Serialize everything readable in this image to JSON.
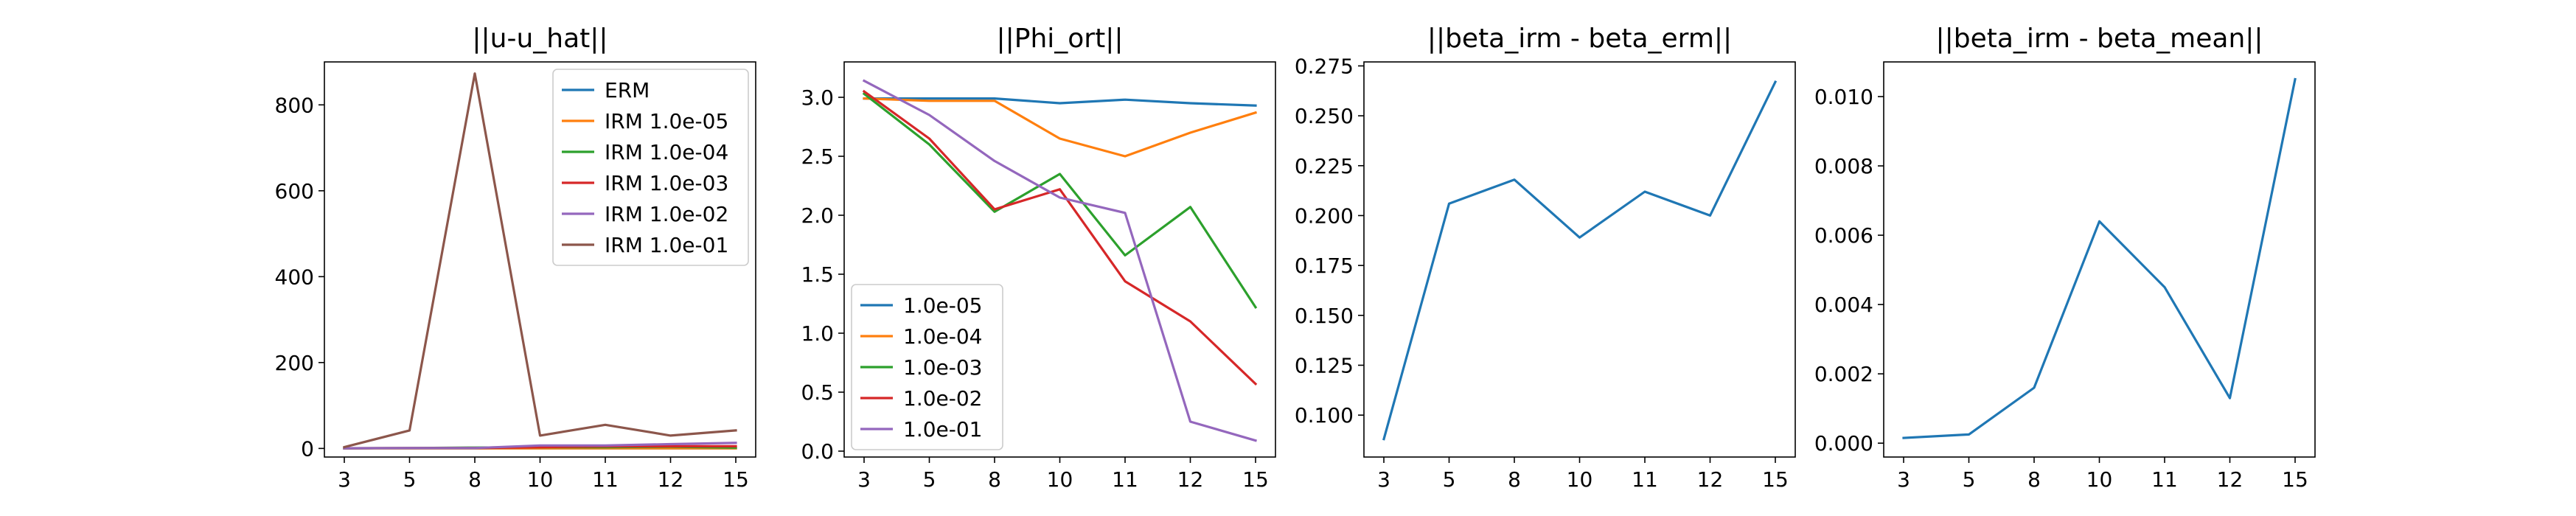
{
  "colors": [
    "#1f77b4",
    "#ff7f0e",
    "#2ca02c",
    "#d62728",
    "#9467bd",
    "#8c564b"
  ],
  "chart_data": [
    {
      "type": "line",
      "title": "||u-u_hat||",
      "xlabel": "",
      "ylabel": "",
      "categories": [
        "3",
        "5",
        "8",
        "10",
        "11",
        "12",
        "15"
      ],
      "ylim": [
        -20,
        900
      ],
      "yticks": [
        0,
        200,
        400,
        600,
        800
      ],
      "ytick_labels": [
        "0",
        "200",
        "400",
        "600",
        "800"
      ],
      "legend_position": "top-right",
      "series": [
        {
          "name": "ERM",
          "values": [
            0.5,
            0.5,
            0.5,
            0.5,
            0.5,
            0.5,
            0.5
          ]
        },
        {
          "name": "IRM 1.0e-05",
          "values": [
            0.5,
            0.5,
            0.5,
            0.5,
            0.5,
            0.5,
            0.5
          ]
        },
        {
          "name": "IRM 1.0e-04",
          "values": [
            0.5,
            1,
            2,
            3,
            3,
            4,
            2
          ]
        },
        {
          "name": "IRM 1.0e-03",
          "values": [
            0.5,
            1,
            1,
            3,
            5,
            5,
            5
          ]
        },
        {
          "name": "IRM 1.0e-02",
          "values": [
            0.5,
            1,
            1,
            7,
            7,
            10,
            13
          ]
        },
        {
          "name": "IRM 1.0e-01",
          "values": [
            3,
            42,
            873,
            30,
            55,
            30,
            42
          ]
        }
      ]
    },
    {
      "type": "line",
      "title": "||Phi_ort||",
      "xlabel": "",
      "ylabel": "",
      "categories": [
        "3",
        "5",
        "8",
        "10",
        "11",
        "12",
        "15"
      ],
      "ylim": [
        -0.05,
        3.3
      ],
      "yticks": [
        0.0,
        0.5,
        1.0,
        1.5,
        2.0,
        2.5,
        3.0
      ],
      "ytick_labels": [
        "0.0",
        "0.5",
        "1.0",
        "1.5",
        "2.0",
        "2.5",
        "3.0"
      ],
      "legend_position": "bottom-left",
      "series": [
        {
          "name": "1.0e-05",
          "values": [
            2.99,
            2.99,
            2.99,
            2.95,
            2.98,
            2.95,
            2.93
          ]
        },
        {
          "name": "1.0e-04",
          "values": [
            2.99,
            2.97,
            2.97,
            2.65,
            2.5,
            2.7,
            2.87
          ]
        },
        {
          "name": "1.0e-03",
          "values": [
            3.03,
            2.6,
            2.03,
            2.35,
            1.66,
            2.07,
            1.22
          ]
        },
        {
          "name": "1.0e-02",
          "values": [
            3.05,
            2.65,
            2.05,
            2.22,
            1.44,
            1.1,
            0.57
          ]
        },
        {
          "name": "1.0e-01",
          "values": [
            3.14,
            2.85,
            2.46,
            2.15,
            2.02,
            0.25,
            0.09
          ]
        }
      ]
    },
    {
      "type": "line",
      "title": "||beta_irm - beta_erm||",
      "xlabel": "",
      "ylabel": "",
      "categories": [
        "3",
        "5",
        "8",
        "10",
        "11",
        "12",
        "15"
      ],
      "ylim": [
        0.079,
        0.277
      ],
      "yticks": [
        0.1,
        0.125,
        0.15,
        0.175,
        0.2,
        0.225,
        0.25,
        0.275
      ],
      "ytick_labels": [
        "0.100",
        "0.125",
        "0.150",
        "0.175",
        "0.200",
        "0.225",
        "0.250",
        "0.275"
      ],
      "legend_position": "none",
      "series": [
        {
          "name": "",
          "values": [
            0.088,
            0.206,
            0.218,
            0.189,
            0.212,
            0.2,
            0.267
          ]
        }
      ]
    },
    {
      "type": "line",
      "title": "||beta_irm - beta_mean||",
      "xlabel": "",
      "ylabel": "",
      "categories": [
        "3",
        "5",
        "8",
        "10",
        "11",
        "12",
        "15"
      ],
      "ylim": [
        -0.0004,
        0.011
      ],
      "yticks": [
        0.0,
        0.002,
        0.004,
        0.006,
        0.008,
        0.01
      ],
      "ytick_labels": [
        "0.000",
        "0.002",
        "0.004",
        "0.006",
        "0.008",
        "0.010"
      ],
      "legend_position": "none",
      "series": [
        {
          "name": "",
          "values": [
            0.00015,
            0.00025,
            0.0016,
            0.0064,
            0.0045,
            0.0013,
            0.0105
          ]
        }
      ]
    }
  ]
}
